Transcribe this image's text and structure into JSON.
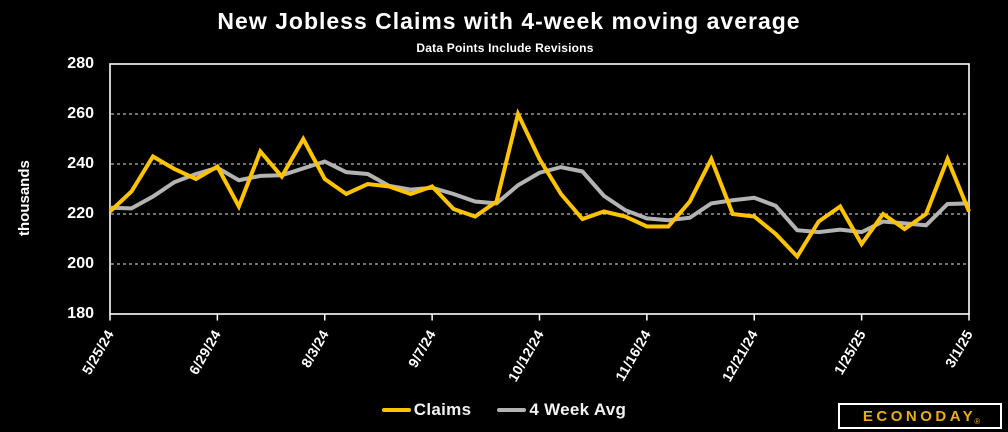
{
  "figure": {
    "title": "New Jobless Claims with 4-week moving average",
    "subtitle": "Data Points Include Revisions",
    "background_color": "#000000",
    "text_color": "#FFFFFF"
  },
  "chart_data": {
    "type": "line",
    "title": "New Jobless Claims with 4-week moving average",
    "subtitle": "Data Points Include Revisions",
    "xlabel": "",
    "ylabel": "thousands",
    "ylim": [
      180,
      280
    ],
    "y_ticks": [
      180,
      200,
      220,
      240,
      260,
      280
    ],
    "gridlines": [
      200,
      220,
      240,
      260
    ],
    "grid": "horizontal-dashed-white-on-black",
    "legend_position": "bottom-center",
    "x_tick_labels": [
      "5/25/24",
      "6/29/24",
      "8/3/24",
      "9/7/24",
      "10/12/24",
      "11/16/24",
      "12/21/24",
      "1/25/25",
      "3/1/25"
    ],
    "x": [
      "5/25/24",
      "6/1/24",
      "6/8/24",
      "6/15/24",
      "6/22/24",
      "6/29/24",
      "7/6/24",
      "7/13/24",
      "7/20/24",
      "7/27/24",
      "8/3/24",
      "8/10/24",
      "8/17/24",
      "8/24/24",
      "8/31/24",
      "9/7/24",
      "9/14/24",
      "9/21/24",
      "9/28/24",
      "10/5/24",
      "10/12/24",
      "10/19/24",
      "10/26/24",
      "11/2/24",
      "11/9/24",
      "11/16/24",
      "11/23/24",
      "11/30/24",
      "12/7/24",
      "12/14/24",
      "12/21/24",
      "12/28/24",
      "1/4/25",
      "1/11/25",
      "1/18/25",
      "1/25/25",
      "2/1/25",
      "2/8/25",
      "2/15/25",
      "2/22/25",
      "3/1/25"
    ],
    "series": [
      {
        "name": "Claims",
        "color": "#FFC300",
        "values": [
          221,
          229,
          243,
          238,
          234,
          239,
          223,
          245,
          235,
          250,
          234,
          228,
          232,
          231,
          228,
          231,
          222,
          219,
          225,
          260,
          242,
          228,
          218,
          221,
          219,
          215,
          215,
          225,
          242,
          220,
          219,
          212,
          203,
          217,
          223,
          208,
          220,
          214,
          220,
          242,
          221
        ]
      },
      {
        "name": "4 Week Avg",
        "color": "#B3B3B3",
        "values": [
          222.5,
          222.25,
          227,
          232.75,
          236,
          238.5,
          233.5,
          235.25,
          235.5,
          238.25,
          241,
          236.75,
          236,
          231.25,
          229.75,
          230.5,
          228,
          225,
          224.25,
          231.5,
          236.5,
          238.75,
          237,
          227.25,
          221.5,
          218.25,
          217.5,
          218.5,
          224.25,
          225.5,
          226.5,
          223.25,
          213.5,
          212.75,
          213.75,
          212.75,
          217,
          216.25,
          215.5,
          224,
          224.25
        ]
      }
    ]
  },
  "legend": {
    "items": [
      {
        "label": "Claims",
        "color": "#FFC300"
      },
      {
        "label": "4 Week Avg",
        "color": "#B3B3B3"
      }
    ]
  },
  "branding": {
    "logo_text": "ECONODAY",
    "registered_mark": "®",
    "logo_color": "#E9AE15"
  }
}
